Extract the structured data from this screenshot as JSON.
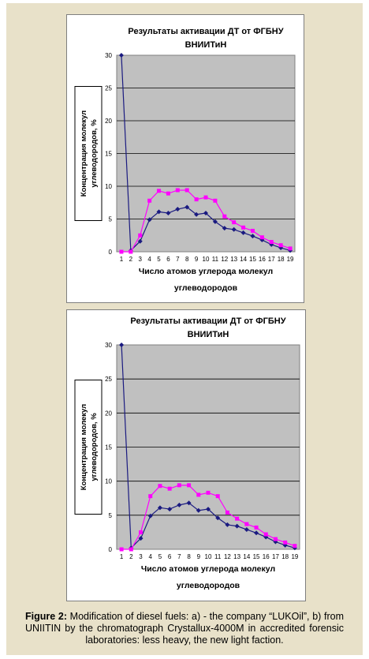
{
  "caption": {
    "label": "Figure 2:",
    "text": " Modification of diesel fuels: a) - the company “LUKOil”, b) from UNIITIN by the chromatograph Crystallux-4000M in accredited forensic laboratories: less heavy, the new light faction."
  },
  "chart_data": [
    {
      "type": "line",
      "title": "Результаты активации ДТ от ФГБНУ",
      "subtitle": "ВНИИТиН",
      "xlabel": "Число атомов углерода молекул",
      "xlabel2": "углеводородов",
      "ylabel": "Концентрация молекул",
      "ylabel2": "углеводородов, %",
      "categories": [
        "1",
        "2",
        "3",
        "4",
        "5",
        "6",
        "7",
        "8",
        "9",
        "10",
        "11",
        "12",
        "13",
        "14",
        "15",
        "16",
        "17",
        "18",
        "19"
      ],
      "ylim": [
        0,
        30
      ],
      "yticks": [
        "0",
        "5",
        "10",
        "15",
        "20",
        "25",
        "30"
      ],
      "grid": true,
      "series": [
        {
          "color": "#1a1a80",
          "marker": "diamond",
          "values": [
            30,
            0.2,
            1.6,
            4.9,
            6.1,
            5.9,
            6.5,
            6.8,
            5.7,
            5.9,
            4.6,
            3.6,
            3.4,
            2.9,
            2.4,
            1.8,
            1.1,
            0.6,
            0.2
          ]
        },
        {
          "color": "#ff00ff",
          "marker": "square",
          "values": [
            0,
            0,
            2.5,
            7.8,
            9.3,
            8.9,
            9.4,
            9.4,
            8.0,
            8.3,
            7.8,
            5.4,
            4.5,
            3.7,
            3.2,
            2.2,
            1.5,
            1.0,
            0.5
          ]
        }
      ]
    },
    {
      "type": "line",
      "title": "Результаты активации ДТ от ФГБНУ",
      "subtitle": "ВНИИТиН",
      "xlabel": "Число атомов углерода молекул",
      "xlabel2": "углеводородов",
      "ylabel": "Концентрация молекул",
      "ylabel2": "углеводородов, %",
      "categories": [
        "1",
        "2",
        "3",
        "4",
        "5",
        "6",
        "7",
        "8",
        "9",
        "10",
        "11",
        "12",
        "13",
        "14",
        "15",
        "16",
        "17",
        "18",
        "19"
      ],
      "ylim": [
        0,
        30
      ],
      "yticks": [
        "0",
        "5",
        "10",
        "15",
        "20",
        "25",
        "30"
      ],
      "grid": true,
      "series": [
        {
          "color": "#1a1a80",
          "marker": "diamond",
          "values": [
            30,
            0.2,
            1.6,
            4.9,
            6.1,
            5.9,
            6.5,
            6.8,
            5.7,
            5.9,
            4.6,
            3.6,
            3.4,
            2.9,
            2.4,
            1.8,
            1.1,
            0.6,
            0.2
          ]
        },
        {
          "color": "#ff00ff",
          "marker": "square",
          "values": [
            0,
            0,
            2.5,
            7.8,
            9.3,
            8.9,
            9.4,
            9.4,
            8.0,
            8.3,
            7.8,
            5.4,
            4.5,
            3.7,
            3.2,
            2.2,
            1.5,
            1.0,
            0.5
          ]
        }
      ]
    }
  ]
}
